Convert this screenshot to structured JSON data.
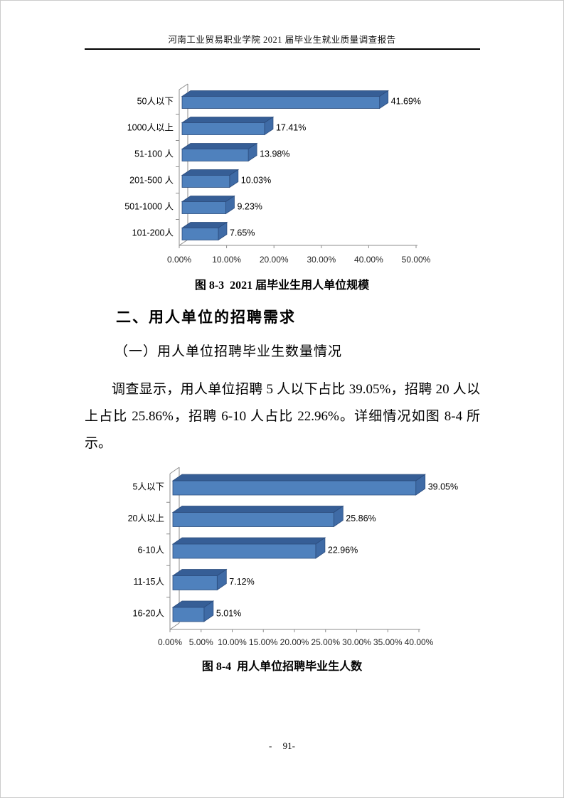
{
  "header": {
    "title": "河南工业贸易职业学院 2021 届毕业生就业质量调查报告"
  },
  "section": {
    "heading": "二、用人单位的招聘需求",
    "subheading": "（一）用人单位招聘毕业生数量情况",
    "paragraph": "调查显示，用人单位招聘 5 人以下占比 39.05%，招聘 20 人以上占比 25.86%，招聘 6-10 人占比 22.96%。详细情况如图 8-4 所示。"
  },
  "footer": {
    "page_number": "- 91-"
  },
  "chart_data": [
    {
      "type": "bar",
      "orientation": "horizontal",
      "style": "3d",
      "caption": "图 8-3  2021 届毕业生用人单位规模",
      "categories": [
        "50人以下",
        "1000人以上",
        "51-100 人",
        "201-500 人",
        "501-1000 人",
        "101-200人"
      ],
      "values": [
        41.69,
        17.41,
        13.98,
        10.03,
        9.23,
        7.65
      ],
      "data_labels": [
        "41.69%",
        "17.41%",
        "13.98%",
        "10.03%",
        "9.23%",
        "7.65%"
      ],
      "x_ticks": [
        "0.00%",
        "10.00%",
        "20.00%",
        "30.00%",
        "40.00%",
        "50.00%"
      ],
      "xlim": [
        0,
        50
      ],
      "grid": false,
      "legend": false,
      "bar_color": "#4F81BD",
      "bar_top_color": "#365E96",
      "bar_side_color": "#3F6BA6",
      "bar_edge_color": "#2C4D7E",
      "axis_color": "#8C8C8C"
    },
    {
      "type": "bar",
      "orientation": "horizontal",
      "style": "3d",
      "caption": "图 8-4  用人单位招聘毕业生人数",
      "categories": [
        "5人以下",
        "20人以上",
        "6-10人",
        "11-15人",
        "16-20人"
      ],
      "values": [
        39.05,
        25.86,
        22.96,
        7.12,
        5.01
      ],
      "data_labels": [
        "39.05%",
        "25.86%",
        "22.96%",
        "7.12%",
        "5.01%"
      ],
      "x_ticks": [
        "0.00%",
        "5.00%",
        "10.00%",
        "15.00%",
        "20.00%",
        "25.00%",
        "30.00%",
        "35.00%",
        "40.00%"
      ],
      "xlim": [
        0,
        40
      ],
      "grid": false,
      "legend": false,
      "bar_color": "#4F81BD",
      "bar_top_color": "#365E96",
      "bar_side_color": "#3F6BA6",
      "bar_edge_color": "#2C4D7E",
      "axis_color": "#8C8C8C"
    }
  ]
}
